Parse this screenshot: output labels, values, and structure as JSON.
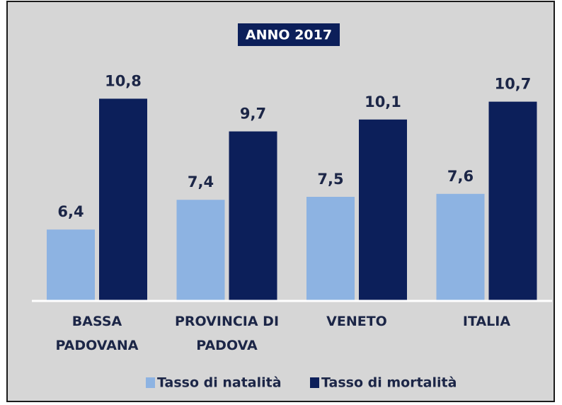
{
  "chart_data": {
    "type": "bar",
    "title": "ANNO 2017",
    "categories": [
      "BASSA PADOVANA",
      "PROVINCIA DI PADOVA",
      "VENETO",
      "ITALIA"
    ],
    "series": [
      {
        "name": "Tasso di natalità",
        "color": "#8db3e2",
        "values": [
          6.4,
          7.4,
          7.5,
          7.6
        ],
        "value_labels": [
          "6,4",
          "7,4",
          "7,5",
          "7,6"
        ]
      },
      {
        "name": "Tasso di mortalità",
        "color": "#0c1f5a",
        "values": [
          10.8,
          9.7,
          10.1,
          10.7
        ],
        "value_labels": [
          "10,8",
          "9,7",
          "10,1",
          "10,7"
        ]
      }
    ],
    "ylim": [
      4,
      11
    ],
    "legend": "bottom"
  }
}
